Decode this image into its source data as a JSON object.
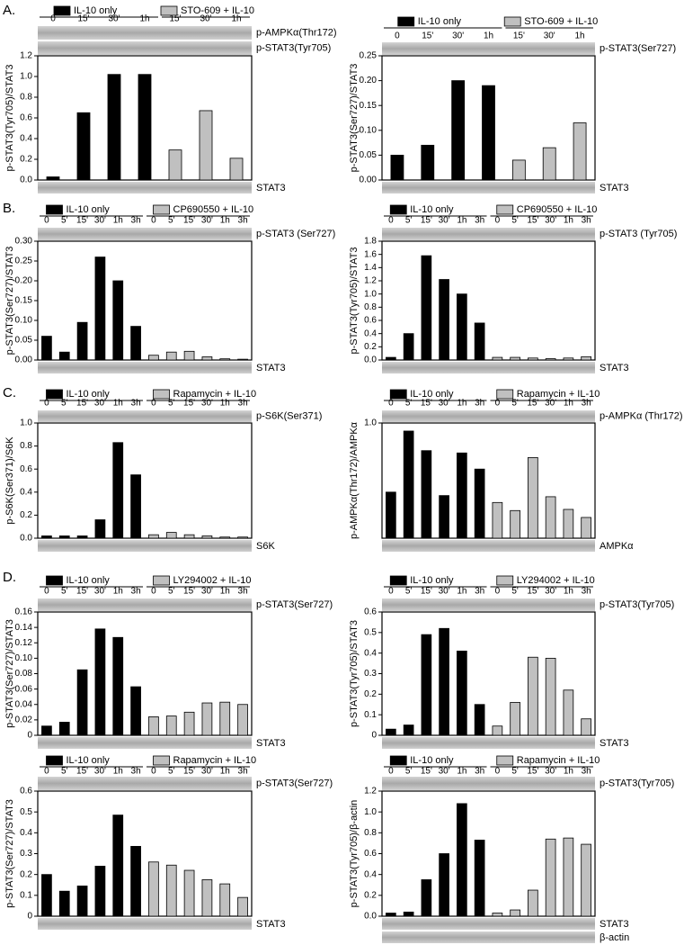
{
  "panels": [
    "A.",
    "B.",
    "C.",
    "D."
  ],
  "chart_data": [
    {
      "type": "bar",
      "ylabel": "p-STAT3(Tyr705)/STAT3",
      "categories": [
        "0",
        "15'",
        "30'",
        "1h",
        "15'",
        "30'",
        "1h"
      ],
      "series": [
        {
          "name": "IL-10 only",
          "color": "#000000",
          "values": [
            0.03,
            0.65,
            1.02,
            1.02,
            null,
            null,
            null
          ]
        },
        {
          "name": "STO-609 + IL-10",
          "color": "#c0c0c0",
          "values": [
            null,
            null,
            null,
            null,
            0.29,
            0.67,
            0.21
          ]
        }
      ],
      "ylim": [
        0,
        1.2
      ],
      "yticks": [
        {
          "value": 0,
          "label": "0.0"
        },
        0.2,
        0.4,
        0.6,
        0.8,
        {
          "value": 1,
          "label": "1.0"
        },
        1.2
      ],
      "blots": [
        "p-AMPKα(Thr172)",
        "p-STAT3(Tyr705)"
      ],
      "loading_controls": [
        "STAT3"
      ]
    },
    {
      "type": "bar",
      "ylabel": "p-STAT3(Ser727)/STAT3",
      "categories": [
        "0",
        "15'",
        "30'",
        "1h",
        "15'",
        "30'",
        "1h"
      ],
      "series": [
        {
          "name": "IL-10 only",
          "color": "#000000",
          "values": [
            0.05,
            0.07,
            0.2,
            0.19,
            null,
            null,
            null
          ]
        },
        {
          "name": "STO-609 + IL-10",
          "color": "#c0c0c0",
          "values": [
            null,
            null,
            null,
            null,
            0.04,
            0.065,
            0.115
          ]
        }
      ],
      "ylim": [
        0,
        0.25
      ],
      "yticks": [
        {
          "value": 0,
          "label": "0.00"
        },
        0.05,
        {
          "value": 0.1,
          "label": "0.10"
        },
        0.15,
        {
          "value": 0.2,
          "label": "0.20"
        },
        0.25
      ],
      "blots": [
        "p-STAT3(Ser727)"
      ],
      "loading_controls": [
        "STAT3"
      ]
    },
    {
      "type": "bar",
      "ylabel": "p-STAT3(Ser727)/STAT3",
      "categories": [
        "0",
        "5'",
        "15'",
        "30'",
        "1h",
        "3h",
        "0",
        "5'",
        "15'",
        "30'",
        "1h",
        "3h"
      ],
      "series": [
        {
          "name": "IL-10 only",
          "color": "#000000",
          "values": [
            0.06,
            0.02,
            0.095,
            0.26,
            0.2,
            0.085,
            null,
            null,
            null,
            null,
            null,
            null
          ]
        },
        {
          "name": "CP690550 + IL-10",
          "color": "#c0c0c0",
          "values": [
            null,
            null,
            null,
            null,
            null,
            null,
            0.012,
            0.02,
            0.022,
            0.008,
            0.003,
            0.002
          ]
        }
      ],
      "ylim": [
        0,
        0.3
      ],
      "yticks": [
        {
          "value": 0,
          "label": "0.00"
        },
        0.05,
        {
          "value": 0.1,
          "label": "0.10"
        },
        0.15,
        {
          "value": 0.2,
          "label": "0.20"
        },
        0.25,
        {
          "value": 0.3,
          "label": "0.30"
        }
      ],
      "blots": [
        "p-STAT3 (Ser727)"
      ],
      "loading_controls": [
        "STAT3"
      ]
    },
    {
      "type": "bar",
      "ylabel": "p-STAT3(Tyr705)/STAT3",
      "categories": [
        "0",
        "5'",
        "15'",
        "30'",
        "1h",
        "3h",
        "0",
        "5'",
        "15'",
        "30'",
        "1h",
        "3h"
      ],
      "series": [
        {
          "name": "IL-10 only",
          "color": "#000000",
          "values": [
            0.04,
            0.4,
            1.58,
            1.22,
            1.0,
            0.56,
            null,
            null,
            null,
            null,
            null,
            null
          ]
        },
        {
          "name": "CP690550 + IL-10",
          "color": "#c0c0c0",
          "values": [
            null,
            null,
            null,
            null,
            null,
            null,
            0.04,
            0.04,
            0.03,
            0.02,
            0.03,
            0.05
          ]
        }
      ],
      "ylim": [
        0,
        1.8
      ],
      "yticks": [
        {
          "value": 0,
          "label": "0.0"
        },
        0.2,
        0.4,
        0.6,
        0.8,
        {
          "value": 1,
          "label": "1.0"
        },
        1.2,
        1.4,
        1.6,
        1.8
      ],
      "blots": [
        "p-STAT3 (Tyr705)"
      ],
      "loading_controls": [
        "STAT3"
      ]
    },
    {
      "type": "bar",
      "ylabel": "p-S6K(Ser371)/S6K",
      "categories": [
        "0",
        "5'",
        "15'",
        "30'",
        "1h",
        "3h",
        "0",
        "5'",
        "15'",
        "30'",
        "1h",
        "3h"
      ],
      "series": [
        {
          "name": "IL-10 only",
          "color": "#000000",
          "values": [
            0.02,
            0.02,
            0.02,
            0.16,
            0.83,
            0.55,
            null,
            null,
            null,
            null,
            null,
            null
          ]
        },
        {
          "name": "Rapamycin + IL-10",
          "color": "#c0c0c0",
          "values": [
            null,
            null,
            null,
            null,
            null,
            null,
            0.03,
            0.05,
            0.03,
            0.02,
            0.01,
            0.01
          ]
        }
      ],
      "ylim": [
        0,
        1.0
      ],
      "yticks": [
        {
          "value": 0,
          "label": "0.0"
        },
        0.2,
        0.4,
        0.6,
        0.8,
        {
          "value": 1,
          "label": "1.0"
        }
      ],
      "blots": [
        "p-S6K(Ser371)"
      ],
      "loading_controls": [
        "S6K"
      ]
    },
    {
      "type": "bar",
      "ylabel": "p-AMPKα(Thr172)/AMPKα",
      "categories": [
        "0",
        "5'",
        "15'",
        "30'",
        "1h",
        "3h",
        "0",
        "5'",
        "15'",
        "30'",
        "1h",
        "3h"
      ],
      "series": [
        {
          "name": "IL-10 only",
          "color": "#000000",
          "values": [
            0.4,
            0.93,
            0.76,
            0.37,
            0.74,
            0.6,
            null,
            null,
            null,
            null,
            null,
            null
          ]
        },
        {
          "name": "Rapamycin + IL-10",
          "color": "#c0c0c0",
          "values": [
            null,
            null,
            null,
            null,
            null,
            null,
            0.31,
            0.24,
            0.7,
            0.36,
            0.25,
            0.18
          ]
        }
      ],
      "ylim": [
        0,
        1.0
      ],
      "yticks": [
        {
          "value": 1,
          "label": "1.0"
        }
      ],
      "blots": [
        "p-AMPKα (Thr172)"
      ],
      "loading_controls": [
        "AMPKα"
      ]
    },
    {
      "type": "bar",
      "ylabel": "p-STAT3(Ser727)/STAT3",
      "categories": [
        "0",
        "5'",
        "15'",
        "30'",
        "1h",
        "3h",
        "0",
        "5'",
        "15'",
        "30'",
        "1h",
        "3h"
      ],
      "series": [
        {
          "name": "IL-10 only",
          "color": "#000000",
          "values": [
            0.012,
            0.017,
            0.085,
            0.138,
            0.127,
            0.063,
            null,
            null,
            null,
            null,
            null,
            null
          ]
        },
        {
          "name": "LY294002 + IL-10",
          "color": "#c0c0c0",
          "values": [
            null,
            null,
            null,
            null,
            null,
            null,
            0.024,
            0.025,
            0.03,
            0.042,
            0.043,
            0.04
          ]
        }
      ],
      "ylim": [
        0,
        0.16
      ],
      "yticks": [
        0,
        0.02,
        0.04,
        0.06,
        0.08,
        {
          "value": 0.1,
          "label": "0.10"
        },
        0.12,
        0.14,
        0.16
      ],
      "blots": [
        "p-STAT3(Ser727)"
      ],
      "loading_controls": [
        "STAT3"
      ]
    },
    {
      "type": "bar",
      "ylabel": "p-STAT3(Tyr705)/STAT3",
      "categories": [
        "0",
        "5'",
        "15'",
        "30'",
        "1h",
        "3h",
        "0",
        "5'",
        "15'",
        "30'",
        "1h",
        "3h"
      ],
      "series": [
        {
          "name": "IL-10 only",
          "color": "#000000",
          "values": [
            0.03,
            0.05,
            0.49,
            0.52,
            0.41,
            0.15,
            null,
            null,
            null,
            null,
            null,
            null
          ]
        },
        {
          "name": "LY294002 + IL-10",
          "color": "#c0c0c0",
          "values": [
            null,
            null,
            null,
            null,
            null,
            null,
            0.045,
            0.16,
            0.38,
            0.375,
            0.22,
            0.08
          ]
        }
      ],
      "ylim": [
        0,
        0.6
      ],
      "yticks": [
        0,
        0.1,
        0.2,
        0.3,
        0.4,
        0.5,
        0.6
      ],
      "blots": [
        "p-STAT3(Tyr705)"
      ],
      "loading_controls": [
        "STAT3"
      ]
    },
    {
      "type": "bar",
      "ylabel": "p-STAT3(Ser727)/STAT3",
      "categories": [
        "0",
        "5'",
        "15'",
        "30'",
        "1h",
        "3h",
        "0",
        "5'",
        "15'",
        "30'",
        "1h",
        "3h"
      ],
      "series": [
        {
          "name": "IL-10 only",
          "color": "#000000",
          "values": [
            0.2,
            0.12,
            0.145,
            0.24,
            0.485,
            0.335,
            null,
            null,
            null,
            null,
            null,
            null
          ]
        },
        {
          "name": "Rapamycin + IL-10",
          "color": "#c0c0c0",
          "values": [
            null,
            null,
            null,
            null,
            null,
            null,
            0.26,
            0.245,
            0.22,
            0.175,
            0.155,
            0.09
          ]
        }
      ],
      "ylim": [
        0,
        0.6
      ],
      "yticks": [
        0,
        0.1,
        0.2,
        0.3,
        0.4,
        0.5,
        0.6
      ],
      "blots": [
        "p-STAT3(Ser727)"
      ],
      "loading_controls": [
        "STAT3"
      ]
    },
    {
      "type": "bar",
      "ylabel": "p-STAT3(Tyr705)/β-actin",
      "categories": [
        "0",
        "5'",
        "15'",
        "30'",
        "1h",
        "3h",
        "0",
        "5'",
        "15'",
        "30'",
        "1h",
        "3h"
      ],
      "series": [
        {
          "name": "IL-10 only",
          "color": "#000000",
          "values": [
            0.03,
            0.04,
            0.35,
            0.6,
            1.08,
            0.73,
            null,
            null,
            null,
            null,
            null,
            null
          ]
        },
        {
          "name": "Rapamycin + IL-10",
          "color": "#c0c0c0",
          "values": [
            null,
            null,
            null,
            null,
            null,
            null,
            0.03,
            0.06,
            0.25,
            0.74,
            0.75,
            0.69
          ]
        }
      ],
      "ylim": [
        0,
        1.2
      ],
      "yticks": [
        {
          "value": 0,
          "label": "0.0"
        },
        0.2,
        0.4,
        0.6,
        0.8,
        {
          "value": 1,
          "label": "1.0"
        },
        1.2
      ],
      "blots": [
        "p-STAT3(Tyr705)"
      ],
      "loading_controls": [
        "STAT3",
        "β-actin"
      ]
    }
  ]
}
